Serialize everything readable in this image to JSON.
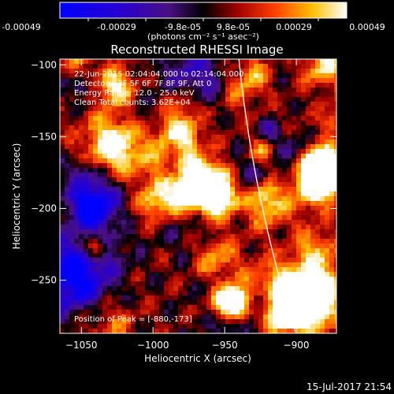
{
  "colorbar": {
    "ticks": [
      "-0.00049",
      "-0.00029",
      "-9.8e-05",
      "9.8e-05",
      "0.00029",
      "0.00049"
    ],
    "unit_label": "(photons cm⁻² s⁻¹ asec⁻²)"
  },
  "chart_data": {
    "type": "heatmap",
    "title": "Reconstructed RHESSI Image",
    "xlabel": "Heliocentric X (arcsec)",
    "ylabel": "Heliocentric Y (arcsec)",
    "xlim": [
      -1065,
      -872
    ],
    "ylim": [
      -287,
      -96
    ],
    "x_ticks": [
      -1050,
      -1000,
      -950,
      -900
    ],
    "y_ticks": [
      -100,
      -150,
      -200,
      -250
    ],
    "x_tick_labels": [
      "−1050",
      "−1000",
      "−950",
      "−900"
    ],
    "y_tick_labels": [
      "−100",
      "−150",
      "−200",
      "−250"
    ],
    "value_range": [
      -0.00049,
      0.00049
    ],
    "annotations": [
      "22-Jun-2015 02:04:04.000 to 02:14:04.000",
      "Detectors: 3F 5F 6F 7F 8F 9F, Att 0",
      "Energy Range: 12.0 - 25.0 keV",
      "Clean     Total counts: 3.62E+04"
    ],
    "peak_label": "Position of Peak = [-880,-173]",
    "peak": [
      -880,
      -173
    ],
    "limb": {
      "color": "#ffffff"
    }
  },
  "footer": {
    "timestamp": "15-Jul-2017 21:54"
  }
}
